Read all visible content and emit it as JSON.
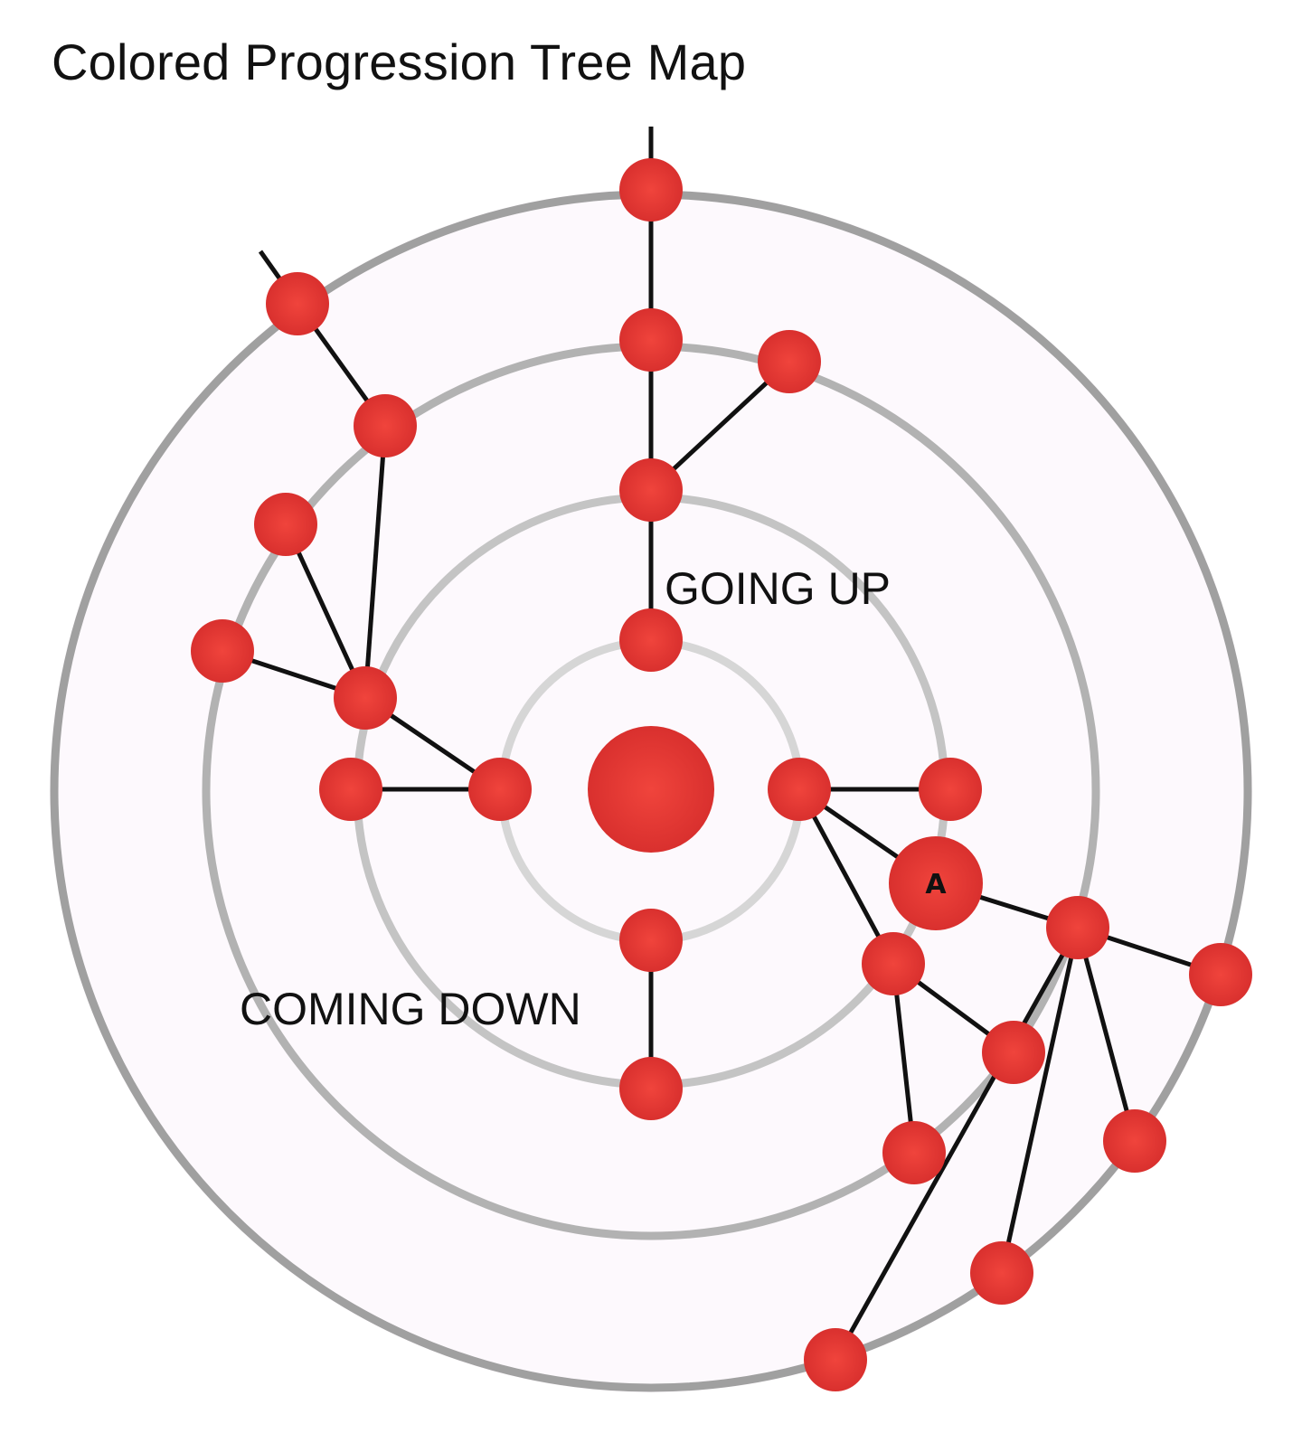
{
  "title": "Colored Progression Tree Map",
  "colors": {
    "node": "#e53935",
    "node_highlight": "#f0443c",
    "edge": "#111111",
    "ring_inner": "#d6d6d6",
    "ring_2": "#c4c4c4",
    "ring_3": "#b2b2b2",
    "ring_outer": "#a0a0a0",
    "disc_fill": "#fdf9fd"
  },
  "labels": {
    "going_up": "GOING UP",
    "coming_down": "COMING DOWN",
    "node_a": "A"
  }
}
